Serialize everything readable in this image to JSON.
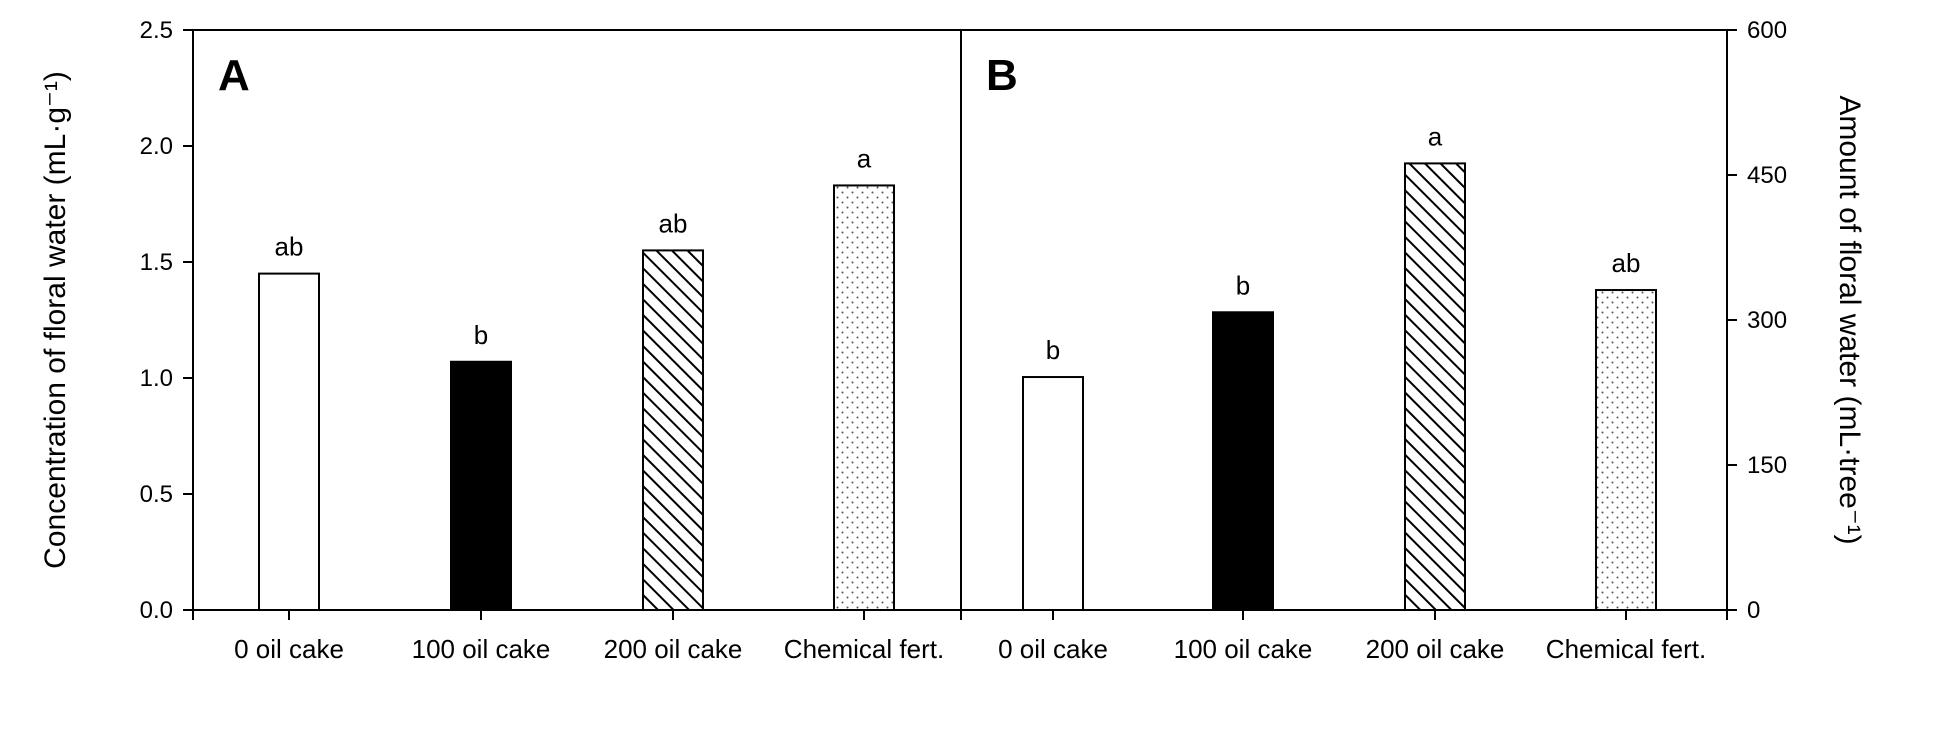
{
  "chart_data": [
    {
      "panel": "A",
      "type": "bar",
      "categories": [
        "0 oil cake",
        "100 oil cake",
        "200 oil cake",
        "Chemical fert."
      ],
      "values": [
        1.45,
        1.07,
        1.55,
        1.83
      ],
      "significance": [
        "ab",
        "b",
        "ab",
        "a"
      ],
      "patterns": [
        "open",
        "solid",
        "hatch",
        "dots"
      ],
      "ylabel": "Concentration of floral water (mL·g⁻¹)",
      "ylim": [
        0,
        2.5
      ],
      "yticks": [
        "0.0",
        "0.5",
        "1.0",
        "1.5",
        "2.0",
        "2.5"
      ],
      "axis": "left"
    },
    {
      "panel": "B",
      "type": "bar",
      "categories": [
        "0 oil cake",
        "100 oil cake",
        "200 oil cake",
        "Chemical fert."
      ],
      "values": [
        241,
        308,
        462,
        331
      ],
      "significance": [
        "b",
        "b",
        "a",
        "ab"
      ],
      "patterns": [
        "open",
        "solid",
        "hatch",
        "dots"
      ],
      "ylabel": "Amount of floral water (mL·tree⁻¹)",
      "ylim": [
        0,
        600
      ],
      "yticks": [
        "0",
        "150",
        "300",
        "450",
        "600"
      ],
      "axis": "right"
    }
  ],
  "legend": "none",
  "grid": false,
  "colors": {
    "axis": "#000000",
    "solid_bar": "#000000",
    "open_bar": "#ffffff"
  }
}
